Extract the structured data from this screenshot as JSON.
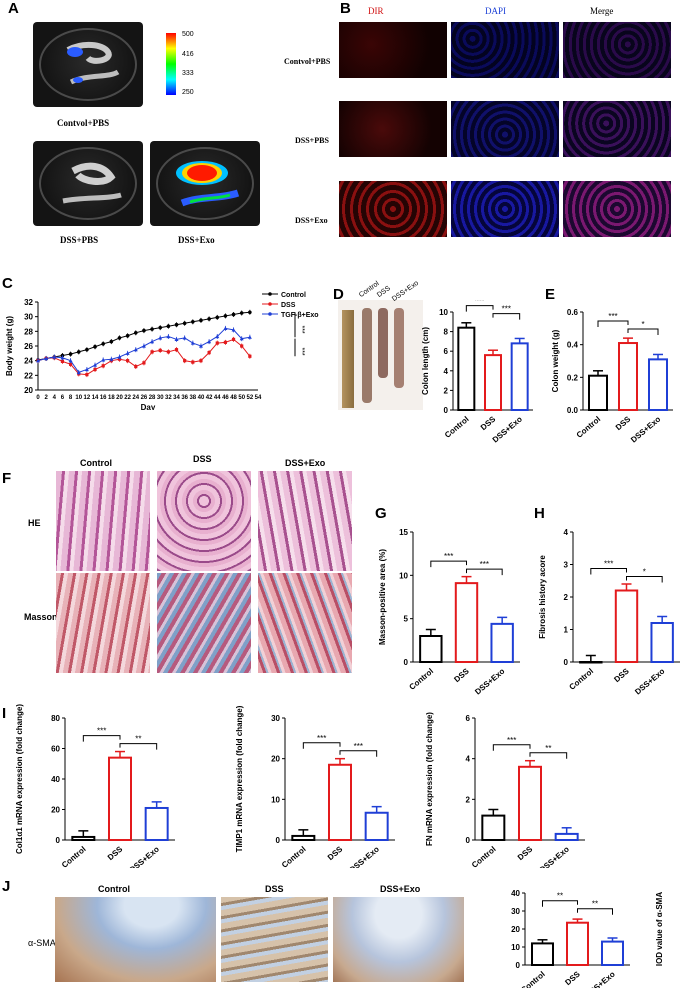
{
  "panel_letters": [
    "A",
    "B",
    "C",
    "D",
    "E",
    "F",
    "G",
    "H",
    "I",
    "J"
  ],
  "panelA": {
    "labels": [
      "Contvol+PBS",
      "DSS+PBS",
      "DSS+Exo"
    ],
    "scale": [
      "500",
      "416",
      "333",
      "250"
    ]
  },
  "panelB": {
    "columns": [
      "DIR",
      "DAPI",
      "Merge"
    ],
    "rows": [
      "Contvol+PBS",
      "DSS+PBS",
      "DSS+Exo"
    ]
  },
  "panelF": {
    "columns": [
      "Control",
      "DSS",
      "DSS+Exo"
    ],
    "rows": [
      "HE",
      "Masson"
    ]
  },
  "panelJ": {
    "columns": [
      "Control",
      "DSS",
      "DSS+Exo"
    ],
    "row": "α-SMA"
  },
  "colors": {
    "control": "#000000",
    "dss": "#e31a1c",
    "exo": "#1f3fd6"
  },
  "chart_data": [
    {
      "id": "C",
      "type": "line",
      "xlabel": "Day",
      "ylabel": "Body weight  (g)",
      "ylim": [
        20,
        32
      ],
      "xlim": [
        0,
        54
      ],
      "yticks": [
        "20",
        "22",
        "24",
        "26",
        "28",
        "30",
        "32"
      ],
      "xticks": [
        0,
        2,
        4,
        6,
        8,
        10,
        12,
        14,
        16,
        18,
        20,
        22,
        24,
        26,
        28,
        30,
        32,
        34,
        36,
        38,
        40,
        42,
        44,
        46,
        48,
        50,
        52,
        54
      ],
      "legend": [
        "Control",
        "DSS",
        "TGF-β+Exo"
      ],
      "sig": [
        "***",
        "***"
      ],
      "x": [
        0,
        2,
        4,
        6,
        8,
        10,
        12,
        14,
        16,
        18,
        20,
        22,
        24,
        26,
        28,
        30,
        32,
        34,
        36,
        38,
        40,
        42,
        44,
        46,
        48,
        50,
        52
      ],
      "series": [
        {
          "name": "Control",
          "values": [
            24.1,
            24.3,
            24.5,
            24.7,
            24.9,
            25.2,
            25.5,
            25.9,
            26.3,
            26.6,
            27.1,
            27.4,
            27.8,
            28.1,
            28.3,
            28.5,
            28.7,
            28.9,
            29.1,
            29.3,
            29.5,
            29.7,
            29.9,
            30.1,
            30.3,
            30.5,
            30.6
          ]
        },
        {
          "name": "DSS",
          "values": [
            24.0,
            24.3,
            24.4,
            23.9,
            23.5,
            22.2,
            22.1,
            22.8,
            23.3,
            24.0,
            24.2,
            24.0,
            23.2,
            23.7,
            25.2,
            25.4,
            25.2,
            25.5,
            24.0,
            23.8,
            24.0,
            25.1,
            26.4,
            26.5,
            26.9,
            26.0,
            24.6
          ]
        },
        {
          "name": "TGF-β+Exo",
          "values": [
            24.0,
            24.3,
            24.5,
            24.4,
            24.0,
            22.4,
            22.8,
            23.4,
            24.1,
            24.2,
            24.5,
            25.0,
            25.5,
            26.0,
            26.6,
            27.1,
            27.3,
            26.9,
            27.1,
            26.4,
            26.0,
            26.6,
            27.3,
            28.4,
            28.2,
            27.0,
            27.2
          ]
        }
      ]
    },
    {
      "id": "D",
      "type": "bar",
      "ylabel": "Colon length (cm)",
      "ylim": [
        0,
        10
      ],
      "yticks": [
        "0",
        "2",
        "4",
        "6",
        "8",
        "10"
      ],
      "categories": [
        "Control",
        "DSS",
        "DSS+Exo"
      ],
      "values": [
        8.4,
        5.6,
        6.8
      ],
      "photo_labels": [
        "Control",
        "DSS",
        "DSS+Exo"
      ],
      "sig": [
        "***",
        "***"
      ]
    },
    {
      "id": "E",
      "type": "bar",
      "ylabel": "Colon weight (g)",
      "ylim": [
        0,
        0.6
      ],
      "yticks": [
        "0.0",
        "0.2",
        "0.4",
        "0.6"
      ],
      "categories": [
        "Control",
        "DSS",
        "DSS+Exo"
      ],
      "values": [
        0.21,
        0.41,
        0.31
      ],
      "sig": [
        "***",
        "*"
      ]
    },
    {
      "id": "G",
      "type": "bar",
      "ylabel": "Masson-positive area (%)",
      "ylim": [
        0,
        15
      ],
      "yticks": [
        "0",
        "5",
        "10",
        "15"
      ],
      "categories": [
        "Control",
        "DSS",
        "DSS+Exo"
      ],
      "values": [
        3.0,
        9.1,
        4.4
      ],
      "sig": [
        "***",
        "***"
      ]
    },
    {
      "id": "H",
      "type": "bar",
      "ylabel": "Fibrosis history acore",
      "ylim": [
        0,
        4
      ],
      "yticks": [
        "0",
        "1",
        "2",
        "3",
        "4"
      ],
      "categories": [
        "Control",
        "DSS",
        "DSS+Exo"
      ],
      "values": [
        0,
        2.2,
        1.2
      ],
      "sig": [
        "***",
        "*"
      ]
    },
    {
      "id": "I1",
      "type": "bar",
      "ylabel": "Col1α1 mRNA expression  (fold change)",
      "ylim": [
        0,
        80
      ],
      "yticks": [
        "0",
        "20",
        "40",
        "60",
        "80"
      ],
      "categories": [
        "Control",
        "DSS",
        "DSS+Exo"
      ],
      "values": [
        2,
        54,
        21
      ],
      "sig": [
        "***",
        "**"
      ]
    },
    {
      "id": "I2",
      "type": "bar",
      "ylabel": "TIMP1 mRNA expression  (fold change)",
      "ylim": [
        0,
        30
      ],
      "yticks": [
        "0",
        "10",
        "20",
        "30"
      ],
      "categories": [
        "Control",
        "DSS",
        "DSS+Exo"
      ],
      "values": [
        1,
        18.5,
        6.7
      ],
      "sig": [
        "***",
        "***"
      ]
    },
    {
      "id": "I3",
      "type": "bar",
      "ylabel": "FN mRNA expression  (fold change)",
      "ylim": [
        0,
        6
      ],
      "yticks": [
        "0",
        "2",
        "4",
        "6"
      ],
      "categories": [
        "Control",
        "DSS",
        "DSS+Exo"
      ],
      "values": [
        1.2,
        3.6,
        0.3
      ],
      "sig": [
        "***",
        "**"
      ]
    },
    {
      "id": "J",
      "type": "bar",
      "ylabel": "IOD value of α-SMA",
      "ylim": [
        0,
        40
      ],
      "yticks": [
        "0",
        "10",
        "20",
        "30",
        "40"
      ],
      "categories": [
        "Control",
        "DSS",
        "DSS+Exo"
      ],
      "values": [
        12,
        23.5,
        13
      ],
      "sig": [
        "**",
        "**"
      ]
    }
  ]
}
